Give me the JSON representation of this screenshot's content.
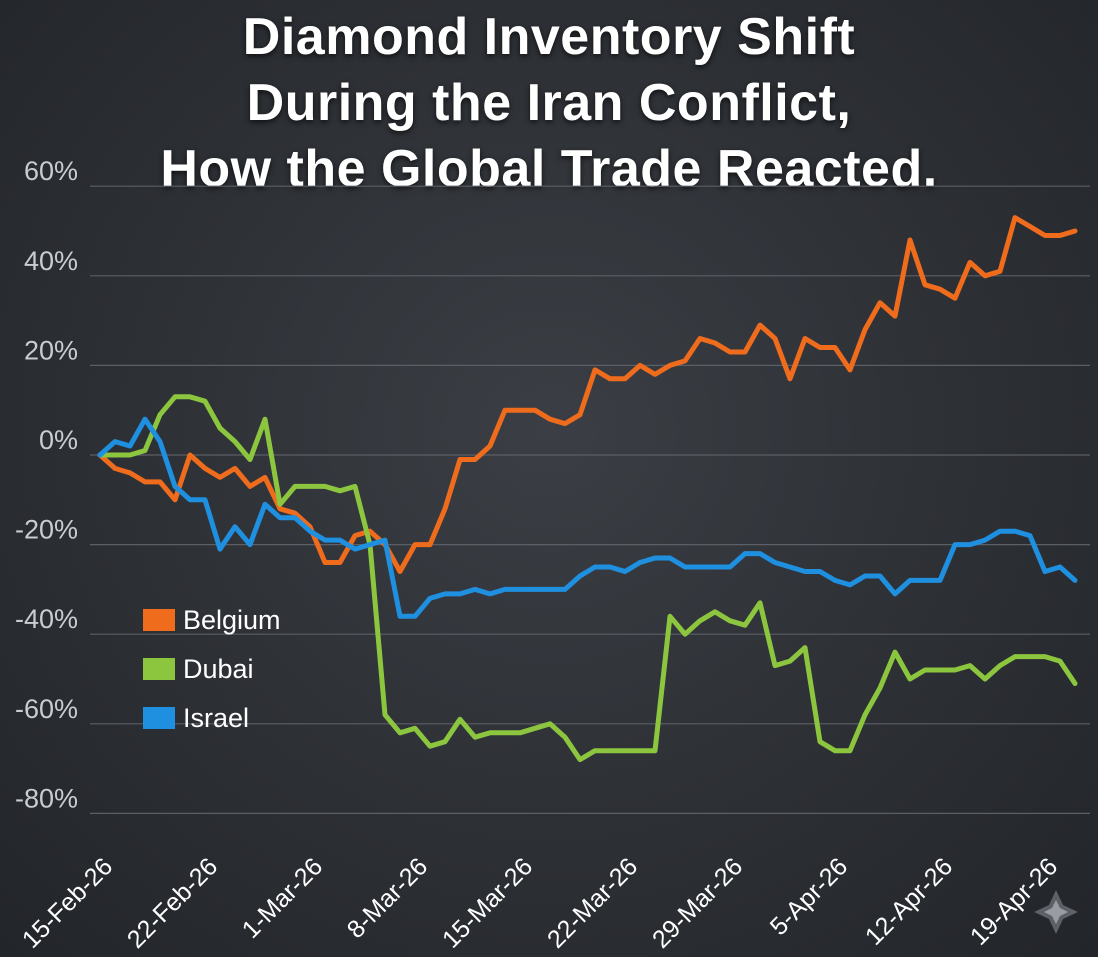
{
  "title_lines": [
    "Diamond Inventory Shift",
    "During the Iran Conflict,",
    "How the Global Trade Reacted."
  ],
  "chart_data": {
    "type": "line",
    "title": "Diamond Inventory Shift During the Iran Conflict, How the Global Trade Reacted.",
    "xlabel": "",
    "ylabel": "",
    "ylim": [
      -80,
      60
    ],
    "y_ticks": [
      60,
      40,
      20,
      0,
      -20,
      -40,
      -60,
      -80
    ],
    "y_tick_labels": [
      "60%",
      "40%",
      "20%",
      "0%",
      "-20%",
      "-40%",
      "-60%",
      "-80%"
    ],
    "x_tick_labels": [
      "15-Feb-26",
      "22-Feb-26",
      "1-Mar-26",
      "8-Mar-26",
      "15-Mar-26",
      "22-Mar-26",
      "29-Mar-26",
      "5-Apr-26",
      "12-Apr-26",
      "19-Apr-26"
    ],
    "x_start": "2026-02-15",
    "grid": true,
    "legend_position": "lower-left",
    "series": [
      {
        "name": "Belgium",
        "color": "#ef6c1d",
        "points": [
          [
            0,
            0
          ],
          [
            1,
            -3
          ],
          [
            2,
            -4
          ],
          [
            3,
            -6
          ],
          [
            4,
            -6
          ],
          [
            5,
            -10
          ],
          [
            6,
            0
          ],
          [
            7,
            -3
          ],
          [
            8,
            -5
          ],
          [
            9,
            -3
          ],
          [
            10,
            -7
          ],
          [
            11,
            -5
          ],
          [
            12,
            -12
          ],
          [
            13,
            -13
          ],
          [
            14,
            -16
          ],
          [
            15,
            -24
          ],
          [
            16,
            -24
          ],
          [
            17,
            -18
          ],
          [
            18,
            -17
          ],
          [
            19,
            -20
          ],
          [
            20,
            -26
          ],
          [
            21,
            -20
          ],
          [
            22,
            -20
          ],
          [
            23,
            -12
          ],
          [
            24,
            -1
          ],
          [
            25,
            -1
          ],
          [
            26,
            2
          ],
          [
            27,
            10
          ],
          [
            28,
            10
          ],
          [
            29,
            10
          ],
          [
            30,
            8
          ],
          [
            31,
            7
          ],
          [
            32,
            9
          ],
          [
            33,
            19
          ],
          [
            34,
            17
          ],
          [
            35,
            17
          ],
          [
            36,
            20
          ],
          [
            37,
            18
          ],
          [
            38,
            20
          ],
          [
            39,
            21
          ],
          [
            40,
            26
          ],
          [
            41,
            25
          ],
          [
            42,
            23
          ],
          [
            43,
            23
          ],
          [
            44,
            29
          ],
          [
            45,
            26
          ],
          [
            46,
            17
          ],
          [
            47,
            26
          ],
          [
            48,
            24
          ],
          [
            49,
            24
          ],
          [
            50,
            19
          ],
          [
            51,
            28
          ],
          [
            52,
            34
          ],
          [
            53,
            31
          ],
          [
            54,
            48
          ],
          [
            55,
            38
          ],
          [
            56,
            37
          ],
          [
            57,
            35
          ],
          [
            58,
            43
          ],
          [
            59,
            40
          ],
          [
            60,
            41
          ],
          [
            61,
            53
          ],
          [
            62,
            51
          ],
          [
            63,
            49
          ],
          [
            64,
            49
          ],
          [
            65,
            50
          ]
        ]
      },
      {
        "name": "Dubai",
        "color": "#8cc63f",
        "points": [
          [
            0,
            0
          ],
          [
            1,
            0
          ],
          [
            2,
            0
          ],
          [
            3,
            1
          ],
          [
            4,
            9
          ],
          [
            5,
            13
          ],
          [
            6,
            13
          ],
          [
            7,
            12
          ],
          [
            8,
            6
          ],
          [
            9,
            3
          ],
          [
            10,
            -1
          ],
          [
            11,
            8
          ],
          [
            12,
            -11
          ],
          [
            13,
            -7
          ],
          [
            14,
            -7
          ],
          [
            15,
            -7
          ],
          [
            16,
            -8
          ],
          [
            17,
            -7
          ],
          [
            18,
            -20
          ],
          [
            19,
            -58
          ],
          [
            20,
            -62
          ],
          [
            21,
            -61
          ],
          [
            22,
            -65
          ],
          [
            23,
            -64
          ],
          [
            24,
            -59
          ],
          [
            25,
            -63
          ],
          [
            26,
            -62
          ],
          [
            27,
            -62
          ],
          [
            28,
            -62
          ],
          [
            29,
            -61
          ],
          [
            30,
            -60
          ],
          [
            31,
            -63
          ],
          [
            32,
            -68
          ],
          [
            33,
            -66
          ],
          [
            34,
            -66
          ],
          [
            35,
            -66
          ],
          [
            36,
            -66
          ],
          [
            37,
            -66
          ],
          [
            38,
            -36
          ],
          [
            39,
            -40
          ],
          [
            40,
            -37
          ],
          [
            41,
            -35
          ],
          [
            42,
            -37
          ],
          [
            43,
            -38
          ],
          [
            44,
            -33
          ],
          [
            45,
            -47
          ],
          [
            46,
            -46
          ],
          [
            47,
            -43
          ],
          [
            48,
            -64
          ],
          [
            49,
            -66
          ],
          [
            50,
            -66
          ],
          [
            51,
            -58
          ],
          [
            52,
            -52
          ],
          [
            53,
            -44
          ],
          [
            54,
            -50
          ],
          [
            55,
            -48
          ],
          [
            56,
            -48
          ],
          [
            57,
            -48
          ],
          [
            58,
            -47
          ],
          [
            59,
            -50
          ],
          [
            60,
            -47
          ],
          [
            61,
            -45
          ],
          [
            62,
            -45
          ],
          [
            63,
            -45
          ],
          [
            64,
            -46
          ],
          [
            65,
            -51
          ]
        ]
      },
      {
        "name": "Israel",
        "color": "#1f8fe0",
        "points": [
          [
            0,
            0
          ],
          [
            1,
            3
          ],
          [
            2,
            2
          ],
          [
            3,
            8
          ],
          [
            4,
            3
          ],
          [
            5,
            -7
          ],
          [
            6,
            -10
          ],
          [
            7,
            -10
          ],
          [
            8,
            -21
          ],
          [
            9,
            -16
          ],
          [
            10,
            -20
          ],
          [
            11,
            -11
          ],
          [
            12,
            -14
          ],
          [
            13,
            -14
          ],
          [
            14,
            -17
          ],
          [
            15,
            -19
          ],
          [
            16,
            -19
          ],
          [
            17,
            -21
          ],
          [
            18,
            -20
          ],
          [
            19,
            -19
          ],
          [
            20,
            -36
          ],
          [
            21,
            -36
          ],
          [
            22,
            -32
          ],
          [
            23,
            -31
          ],
          [
            24,
            -31
          ],
          [
            25,
            -30
          ],
          [
            26,
            -31
          ],
          [
            27,
            -30
          ],
          [
            28,
            -30
          ],
          [
            29,
            -30
          ],
          [
            30,
            -30
          ],
          [
            31,
            -30
          ],
          [
            32,
            -27
          ],
          [
            33,
            -25
          ],
          [
            34,
            -25
          ],
          [
            35,
            -26
          ],
          [
            36,
            -24
          ],
          [
            37,
            -23
          ],
          [
            38,
            -23
          ],
          [
            39,
            -25
          ],
          [
            40,
            -25
          ],
          [
            41,
            -25
          ],
          [
            42,
            -25
          ],
          [
            43,
            -22
          ],
          [
            44,
            -22
          ],
          [
            45,
            -24
          ],
          [
            46,
            -25
          ],
          [
            47,
            -26
          ],
          [
            48,
            -26
          ],
          [
            49,
            -28
          ],
          [
            50,
            -29
          ],
          [
            51,
            -27
          ],
          [
            52,
            -27
          ],
          [
            53,
            -31
          ],
          [
            54,
            -28
          ],
          [
            55,
            -28
          ],
          [
            56,
            -28
          ],
          [
            57,
            -20
          ],
          [
            58,
            -20
          ],
          [
            59,
            -19
          ],
          [
            60,
            -17
          ],
          [
            61,
            -17
          ],
          [
            62,
            -18
          ],
          [
            63,
            -26
          ],
          [
            64,
            -25
          ],
          [
            65,
            -28
          ]
        ]
      }
    ]
  }
}
